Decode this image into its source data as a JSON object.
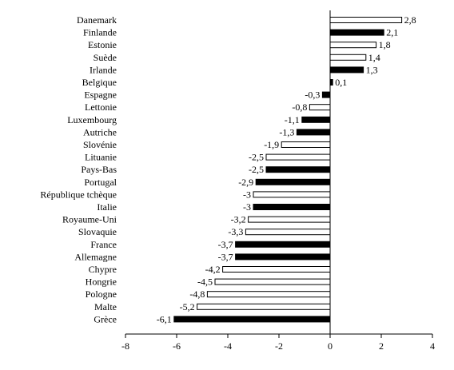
{
  "chart_data": {
    "type": "bar",
    "orientation": "horizontal",
    "title": "",
    "xlabel": "",
    "ylabel": "",
    "xlim": [
      -8,
      4
    ],
    "xticks": [
      "-8",
      "-6",
      "-4",
      "-2",
      "0",
      "2",
      "4"
    ],
    "grid": false,
    "legend": "none",
    "colors": {
      "filled": "#000000",
      "hollow": "#ffffff",
      "outline": "#000000"
    },
    "categories": [
      "Danemark",
      "Finlande",
      "Estonie",
      "Suède",
      "Irlande",
      "Belgique",
      "Espagne",
      "Lettonie",
      "Luxembourg",
      "Autriche",
      "Slovénie",
      "Lituanie",
      "Pays-Bas",
      "Portugal",
      "République tchèque",
      "Italie",
      "Royaume-Uni",
      "Slovaquie",
      "France",
      "Allemagne",
      "Chypre",
      "Hongrie",
      "Pologne",
      "Malte",
      "Grèce"
    ],
    "values": [
      2.8,
      2.1,
      1.8,
      1.4,
      1.3,
      0.1,
      -0.3,
      -0.8,
      -1.1,
      -1.3,
      -1.9,
      -2.5,
      -2.5,
      -2.9,
      -3,
      -3,
      -3.2,
      -3.3,
      -3.7,
      -3.7,
      -4.2,
      -4.5,
      -4.8,
      -5.2,
      -6.1
    ],
    "value_labels": [
      "2,8",
      "2,1",
      "1,8",
      "1,4",
      "1,3",
      "0,1",
      "-0,3",
      "-0,8",
      "-1,1",
      "-1,3",
      "-1,9",
      "-2,5",
      "-2,5",
      "-2,9",
      "-3",
      "-3",
      "-3,2",
      "-3,3",
      "-3,7",
      "-3,7",
      "-4,2",
      "-4,5",
      "-4,8",
      "-5,2",
      "-6,1"
    ],
    "filled": [
      false,
      true,
      false,
      false,
      true,
      true,
      true,
      false,
      true,
      true,
      false,
      false,
      true,
      true,
      false,
      true,
      false,
      false,
      true,
      true,
      false,
      false,
      false,
      false,
      true
    ]
  }
}
